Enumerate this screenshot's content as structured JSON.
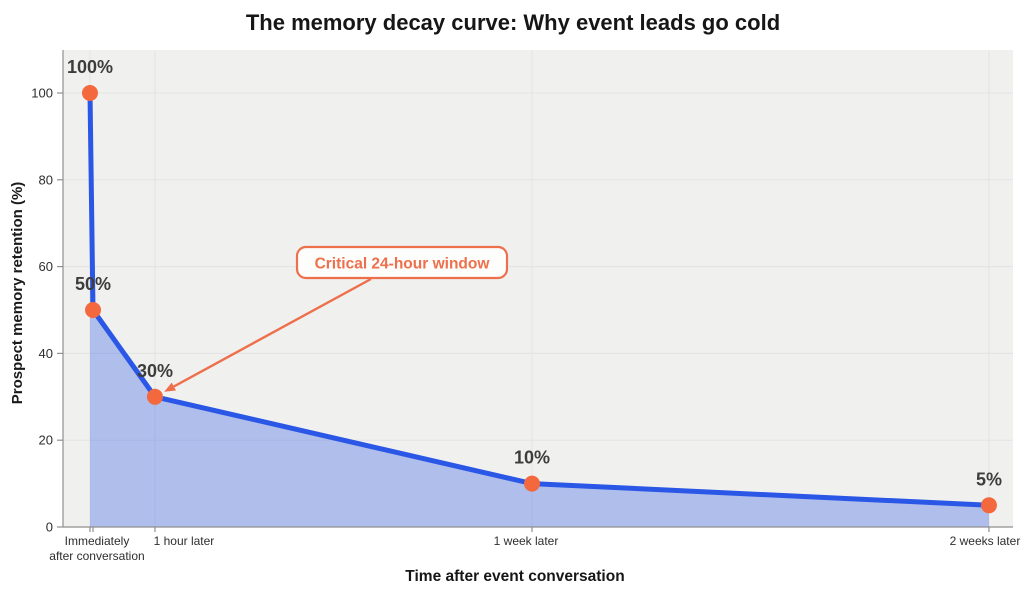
{
  "chart_data": {
    "type": "area",
    "title": "The memory decay curve: Why event leads go cold",
    "xlabel": "Time after event conversation",
    "ylabel": "Prospect memory retention (%)",
    "ylim": [
      0,
      110
    ],
    "yticks": [
      0,
      20,
      40,
      60,
      80,
      100
    ],
    "grid": true,
    "legend": "none",
    "points": [
      {
        "tick_label": "Immediately\nafter conversation",
        "x_frac": 0.0284,
        "value": 100,
        "point_label": "100%"
      },
      {
        "tick_label": "",
        "x_frac": 0.0316,
        "value": 50,
        "point_label": "50%"
      },
      {
        "tick_label": "1 hour later",
        "x_frac": 0.0968,
        "value": 30,
        "point_label": "30%"
      },
      {
        "tick_label": "1 week later",
        "x_frac": 0.4937,
        "value": 10,
        "point_label": "10%"
      },
      {
        "tick_label": "2 weeks later",
        "x_frac": 0.9747,
        "value": 5,
        "point_label": "5%"
      }
    ],
    "annotation": {
      "text": "Critical 24-hour window",
      "target_index": 2
    },
    "colors": {
      "line": "#2b57e6",
      "area_fill": "rgba(45,87,230,0.33)",
      "marker": "#f4683e",
      "annotation": "#ee6f4b",
      "annotation_bg": "#fdfdfc",
      "plot_bg": "#f0f0ee",
      "grid": "#e3e3e6",
      "spine": "#8f8f8f",
      "data_label": "#3d3d3d"
    }
  }
}
